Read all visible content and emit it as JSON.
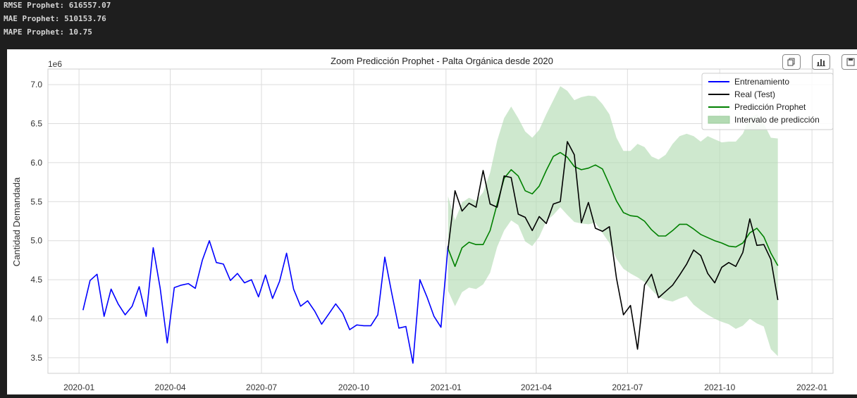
{
  "console": {
    "lines": [
      "RMSE Prophet: 616557.07",
      "MAE Prophet: 510153.76",
      "MAPE Prophet: 10.75"
    ]
  },
  "chart_data": {
    "type": "line",
    "title": "Zoom Predicción Prophet - Palta Orgánica desde 2020",
    "xlabel": "",
    "ylabel": "Cantidad Demandada",
    "y_offset_label": "1e6",
    "x_tick_labels": [
      "2020-01",
      "2020-04",
      "2020-07",
      "2020-10",
      "2021-01",
      "2021-04",
      "2021-07",
      "2021-10",
      "2022-01"
    ],
    "y_tick_labels": [
      "3.5",
      "4.0",
      "4.5",
      "5.0",
      "5.5",
      "6.0",
      "6.5",
      "7.0"
    ],
    "ylim": [
      3.3,
      7.2
    ],
    "grid": true,
    "legend_position": "top-right",
    "legend": [
      "Entrenamiento",
      "Real (Test)",
      "Predicción Prophet",
      "Intervalo de predicción"
    ],
    "colors": {
      "train": "#0000ff",
      "test": "#000000",
      "pred": "#008000",
      "interval": "#b3dbb3"
    },
    "train": {
      "name": "Entrenamiento",
      "x": [
        "2020-01-05",
        "2020-01-12",
        "2020-01-19",
        "2020-01-26",
        "2020-02-02",
        "2020-02-09",
        "2020-02-16",
        "2020-02-23",
        "2020-03-01",
        "2020-03-08",
        "2020-03-15",
        "2020-03-22",
        "2020-03-29",
        "2020-04-05",
        "2020-04-12",
        "2020-04-19",
        "2020-04-26",
        "2020-05-03",
        "2020-05-10",
        "2020-05-17",
        "2020-05-24",
        "2020-05-31",
        "2020-06-07",
        "2020-06-14",
        "2020-06-21",
        "2020-06-28",
        "2020-07-05",
        "2020-07-12",
        "2020-07-19",
        "2020-07-26",
        "2020-08-02",
        "2020-08-09",
        "2020-08-16",
        "2020-08-23",
        "2020-08-30",
        "2020-09-06",
        "2020-09-13",
        "2020-09-20",
        "2020-09-27",
        "2020-10-04",
        "2020-10-11",
        "2020-10-18",
        "2020-10-25",
        "2020-11-01",
        "2020-11-08",
        "2020-11-15",
        "2020-11-22",
        "2020-11-29",
        "2020-12-06",
        "2020-12-13",
        "2020-12-20",
        "2020-12-27",
        "2021-01-03"
      ],
      "values": [
        4.11,
        4.49,
        4.57,
        4.03,
        4.38,
        4.19,
        4.05,
        4.16,
        4.41,
        4.03,
        4.91,
        4.39,
        3.69,
        4.4,
        4.43,
        4.45,
        4.39,
        4.75,
        5.0,
        4.72,
        4.7,
        4.49,
        4.58,
        4.46,
        4.5,
        4.28,
        4.56,
        4.26,
        4.48,
        4.84,
        4.38,
        4.16,
        4.23,
        4.1,
        3.93,
        4.06,
        4.19,
        4.07,
        3.86,
        3.92,
        3.91,
        3.91,
        4.05,
        4.79,
        4.32,
        3.88,
        3.9,
        3.43,
        4.5,
        4.28,
        4.03,
        3.89,
        4.93
      ]
    },
    "test": {
      "name": "Real (Test)",
      "x": [
        "2021-01-03",
        "2021-01-10",
        "2021-01-17",
        "2021-01-24",
        "2021-01-31",
        "2021-02-07",
        "2021-02-14",
        "2021-02-21",
        "2021-02-28",
        "2021-03-07",
        "2021-03-14",
        "2021-03-21",
        "2021-03-28",
        "2021-04-04",
        "2021-04-11",
        "2021-04-18",
        "2021-04-25",
        "2021-05-02",
        "2021-05-09",
        "2021-05-16",
        "2021-05-23",
        "2021-05-30",
        "2021-06-06",
        "2021-06-13",
        "2021-06-20",
        "2021-06-27",
        "2021-07-04",
        "2021-07-11",
        "2021-07-18",
        "2021-07-25",
        "2021-08-01",
        "2021-08-08",
        "2021-08-15",
        "2021-08-22",
        "2021-08-29",
        "2021-09-05",
        "2021-09-12",
        "2021-09-19",
        "2021-09-26",
        "2021-10-03",
        "2021-10-10",
        "2021-10-17",
        "2021-10-24",
        "2021-10-31",
        "2021-11-07",
        "2021-11-14",
        "2021-11-21",
        "2021-11-28"
      ],
      "values": [
        4.89,
        5.64,
        5.38,
        5.48,
        5.43,
        5.9,
        5.47,
        5.43,
        5.83,
        5.81,
        5.34,
        5.3,
        5.13,
        5.31,
        5.22,
        5.47,
        5.5,
        6.27,
        6.1,
        5.23,
        5.49,
        5.16,
        5.12,
        5.18,
        4.52,
        4.05,
        4.17,
        3.61,
        4.43,
        4.57,
        4.27,
        4.35,
        4.43,
        4.56,
        4.7,
        4.88,
        4.81,
        4.58,
        4.46,
        4.66,
        4.72,
        4.67,
        4.85,
        5.28,
        4.94,
        4.95,
        4.76,
        4.24
      ]
    },
    "prediction": {
      "name": "Predicción Prophet",
      "x": [
        "2021-01-03",
        "2021-01-10",
        "2021-01-17",
        "2021-01-24",
        "2021-01-31",
        "2021-02-07",
        "2021-02-14",
        "2021-02-21",
        "2021-02-28",
        "2021-03-07",
        "2021-03-14",
        "2021-03-21",
        "2021-03-28",
        "2021-04-04",
        "2021-04-11",
        "2021-04-18",
        "2021-04-25",
        "2021-05-02",
        "2021-05-09",
        "2021-05-16",
        "2021-05-23",
        "2021-05-30",
        "2021-06-06",
        "2021-06-13",
        "2021-06-20",
        "2021-06-27",
        "2021-07-04",
        "2021-07-11",
        "2021-07-18",
        "2021-07-25",
        "2021-08-01",
        "2021-08-08",
        "2021-08-15",
        "2021-08-22",
        "2021-08-29",
        "2021-09-05",
        "2021-09-12",
        "2021-09-19",
        "2021-09-26",
        "2021-10-03",
        "2021-10-10",
        "2021-10-17",
        "2021-10-24",
        "2021-10-31",
        "2021-11-07",
        "2021-11-14",
        "2021-11-21",
        "2021-11-28"
      ],
      "values": [
        4.9,
        4.67,
        4.91,
        4.98,
        4.95,
        4.95,
        5.13,
        5.47,
        5.8,
        5.91,
        5.83,
        5.64,
        5.6,
        5.7,
        5.9,
        6.08,
        6.13,
        6.07,
        5.95,
        5.91,
        5.93,
        5.97,
        5.92,
        5.72,
        5.51,
        5.36,
        5.32,
        5.31,
        5.25,
        5.14,
        5.06,
        5.06,
        5.13,
        5.21,
        5.21,
        5.15,
        5.08,
        5.04,
        5.0,
        4.97,
        4.93,
        4.92,
        4.97,
        5.1,
        5.16,
        5.05,
        4.84,
        4.68
      ]
    },
    "interval": {
      "name": "Intervalo de predicción",
      "x": [
        "2021-01-03",
        "2021-01-10",
        "2021-01-17",
        "2021-01-24",
        "2021-01-31",
        "2021-02-07",
        "2021-02-14",
        "2021-02-21",
        "2021-02-28",
        "2021-03-07",
        "2021-03-14",
        "2021-03-21",
        "2021-03-28",
        "2021-04-04",
        "2021-04-11",
        "2021-04-18",
        "2021-04-25",
        "2021-05-02",
        "2021-05-09",
        "2021-05-16",
        "2021-05-23",
        "2021-05-30",
        "2021-06-06",
        "2021-06-13",
        "2021-06-20",
        "2021-06-27",
        "2021-07-04",
        "2021-07-11",
        "2021-07-18",
        "2021-07-25",
        "2021-08-01",
        "2021-08-08",
        "2021-08-15",
        "2021-08-22",
        "2021-08-29",
        "2021-09-05",
        "2021-09-12",
        "2021-09-19",
        "2021-09-26",
        "2021-10-03",
        "2021-10-10",
        "2021-10-17",
        "2021-10-24",
        "2021-10-31",
        "2021-11-07",
        "2021-11-14",
        "2021-11-21",
        "2021-11-28"
      ],
      "lower": [
        4.36,
        4.16,
        4.34,
        4.4,
        4.38,
        4.44,
        4.59,
        4.92,
        5.13,
        5.26,
        5.2,
        4.99,
        4.93,
        5.05,
        5.25,
        5.33,
        5.43,
        5.33,
        5.24,
        5.22,
        5.21,
        5.23,
        5.1,
        4.97,
        4.77,
        4.64,
        4.58,
        4.53,
        4.47,
        4.37,
        4.28,
        4.24,
        4.22,
        4.26,
        4.29,
        4.18,
        4.11,
        4.05,
        4.0,
        3.96,
        3.93,
        3.87,
        3.91,
        4.0,
        3.94,
        3.9,
        3.61,
        3.52
      ],
      "upper": [
        5.57,
        5.26,
        5.49,
        5.55,
        5.51,
        5.62,
        5.87,
        6.28,
        6.57,
        6.72,
        6.57,
        6.4,
        6.32,
        6.42,
        6.62,
        6.8,
        6.98,
        6.92,
        6.8,
        6.84,
        6.86,
        6.85,
        6.75,
        6.62,
        6.32,
        6.15,
        6.15,
        6.24,
        6.2,
        6.08,
        6.04,
        6.1,
        6.24,
        6.34,
        6.37,
        6.34,
        6.27,
        6.34,
        6.3,
        6.26,
        6.27,
        6.27,
        6.37,
        6.57,
        6.62,
        6.5,
        6.32,
        6.31
      ]
    }
  }
}
